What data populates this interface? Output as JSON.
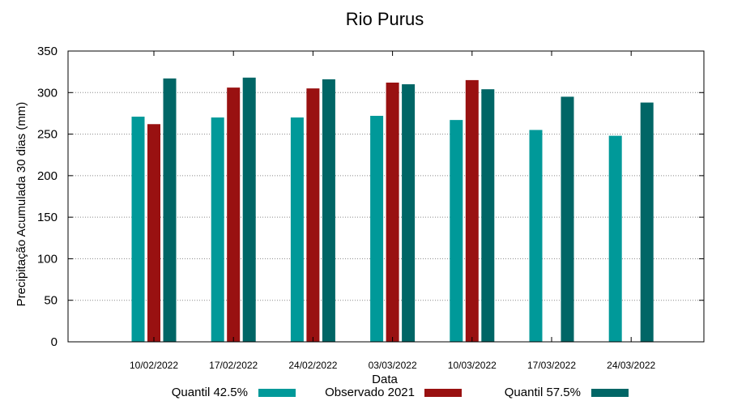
{
  "chart_data": {
    "type": "bar",
    "title": "Rio Purus",
    "xlabel": "Data",
    "ylabel": "Precipitação Acumulada 30 dias (mm)",
    "ylim": [
      0,
      350
    ],
    "yticks": [
      0,
      50,
      100,
      150,
      200,
      250,
      300,
      350
    ],
    "grid": true,
    "legend_position": "bottom",
    "categories": [
      "10/02/2022",
      "17/02/2022",
      "24/02/2022",
      "03/03/2022",
      "10/03/2022",
      "17/03/2022",
      "24/03/2022"
    ],
    "series": [
      {
        "name": "Quantil 42.5%",
        "color": "#009999",
        "values": [
          271,
          270,
          270,
          272,
          267,
          255,
          248
        ]
      },
      {
        "name": "Observado 2021",
        "color": "#991111",
        "values": [
          262,
          306,
          305,
          312,
          315,
          null,
          null
        ]
      },
      {
        "name": "Quantil 57.5%",
        "color": "#006666",
        "values": [
          317,
          318,
          316,
          310,
          304,
          295,
          288
        ]
      }
    ]
  }
}
